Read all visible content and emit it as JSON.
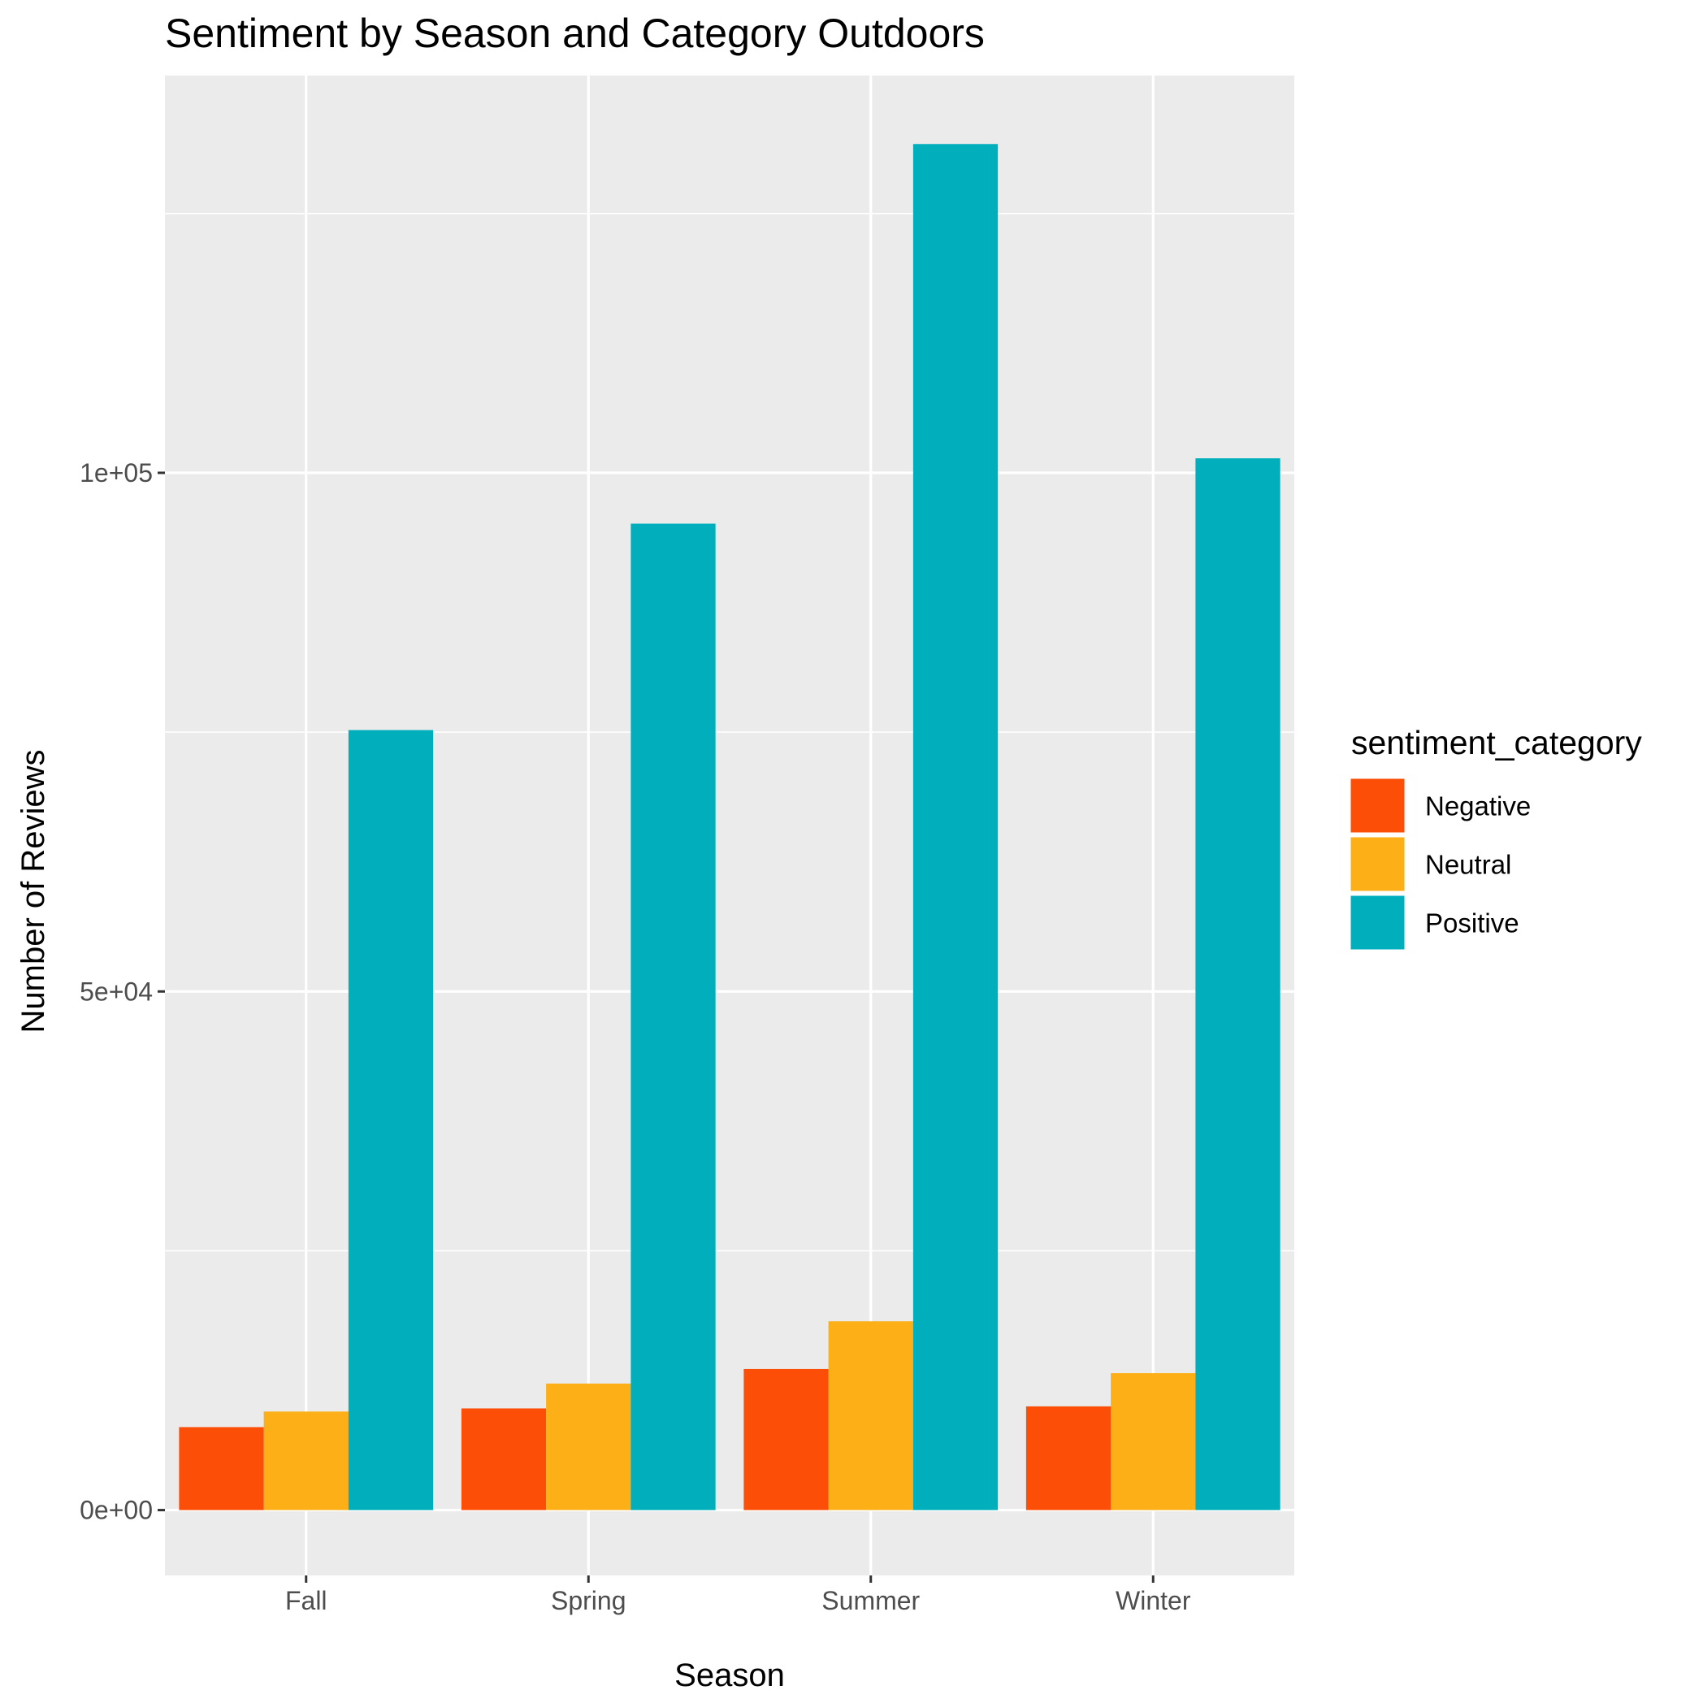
{
  "chart_data": {
    "type": "bar",
    "title": "Sentiment by Season and Category Outdoors",
    "xlabel": "Season",
    "ylabel": "Number of Reviews",
    "categories": [
      "Fall",
      "Spring",
      "Summer",
      "Winter"
    ],
    "series": [
      {
        "name": "Negative",
        "color": "#fc4e07",
        "values": [
          8000,
          9800,
          13600,
          10000
        ]
      },
      {
        "name": "Neutral",
        "color": "#fcaf17",
        "values": [
          9500,
          12200,
          18200,
          13200
        ]
      },
      {
        "name": "Positive",
        "color": "#00afbb",
        "values": [
          75200,
          95100,
          131700,
          101400
        ]
      }
    ],
    "ylim": [
      -6300,
      138300
    ],
    "yticks": [
      0,
      50000,
      100000
    ],
    "ytick_labels": [
      "0e+00",
      "5e+04",
      "1e+05"
    ],
    "grid": true,
    "legend": {
      "title": "sentiment_category",
      "position": "right"
    },
    "panel_background": "#ebebeb"
  }
}
